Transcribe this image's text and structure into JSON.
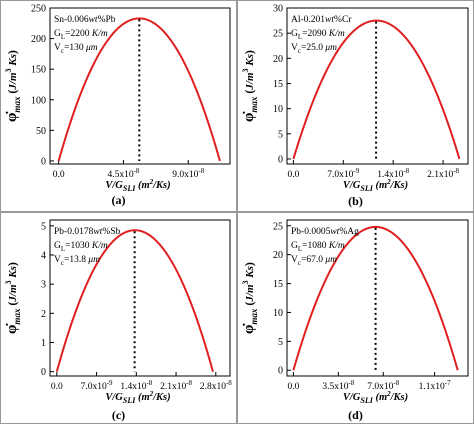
{
  "colors": {
    "curve": "#e02020",
    "axis": "#000000",
    "dotted": "#000000",
    "border": "#999999"
  },
  "chart_data": [
    {
      "type": "line",
      "panel_label": "(a)",
      "annotations": [
        "Sn-0.006wt%Pb",
        "GL=2200 K/m",
        "Vc=130 μm"
      ],
      "annotation_parts": [
        {
          "pre": "Sn-0.006",
          "it": "wt",
          "post": "%Pb"
        },
        {
          "pre": "G",
          "sub": "L",
          "post": "=2200 ",
          "it": "K/m"
        },
        {
          "pre": "V",
          "sub": "c",
          "post": "=130 ",
          "it": "μm"
        }
      ],
      "xlabel": "V/GSLI (m2/Ks)",
      "ylabel": "φmax (J/m3 Ks)",
      "xlim": [
        -6e-09,
        1.19e-07
      ],
      "ylim": [
        -5,
        250
      ],
      "xticks": [
        {
          "v": 0,
          "base": "0.0",
          "exp": ""
        },
        {
          "v": 4.5e-08,
          "base": "4.5x10",
          "exp": "-8"
        },
        {
          "v": 9e-08,
          "base": "9.0x10",
          "exp": "-8"
        }
      ],
      "yticks": [
        0,
        50,
        100,
        150,
        200,
        250
      ],
      "peak": {
        "x": 5.6e-08,
        "y": 233
      },
      "x_end": 1.12e-07
    },
    {
      "type": "line",
      "panel_label": "(b)",
      "annotations": [
        "Al-0.201wt%Cr",
        "GL=2090 K/m",
        "Vc=25.0 μm"
      ],
      "annotation_parts": [
        {
          "pre": "Al-0.201",
          "it": "wt",
          "post": "%Cr"
        },
        {
          "pre": "G",
          "sub": "L",
          "post": "=2090 ",
          "it": "K/m"
        },
        {
          "pre": "V",
          "sub": "c",
          "post": "=25.0 ",
          "it": "μm"
        }
      ],
      "xlabel": "V/GSLI (m2/Ks)",
      "ylabel": "φmax (J/m3 Ks)",
      "xlim": [
        -9e-10,
        2.45e-08
      ],
      "ylim": [
        -1,
        30
      ],
      "xticks": [
        {
          "v": 0,
          "base": "0.0",
          "exp": ""
        },
        {
          "v": 7e-09,
          "base": "7.0x10",
          "exp": "-9"
        },
        {
          "v": 1.4e-08,
          "base": "1.4x10",
          "exp": "-8"
        },
        {
          "v": 2.1e-08,
          "base": "2.1x10",
          "exp": "-8"
        }
      ],
      "yticks": [
        0,
        5,
        10,
        15,
        20,
        25,
        30
      ],
      "peak": {
        "x": 1.16e-08,
        "y": 27.5
      },
      "x_end": 2.33e-08
    },
    {
      "type": "line",
      "panel_label": "(c)",
      "annotations": [
        "Pb-0.0178wt%Sb",
        "GL=1030 K/m",
        "Vc=13.8 μm"
      ],
      "annotation_parts": [
        {
          "pre": "Pb-0.0178",
          "it": "wt",
          "post": "%Sb"
        },
        {
          "pre": "G",
          "sub": "L",
          "post": "=1030 ",
          "it": "K/m"
        },
        {
          "pre": "V",
          "sub": "c",
          "post": "=13.8 ",
          "it": "μm"
        }
      ],
      "xlabel": "V/GSLI (m2/Ks)",
      "ylabel": "φmax (J/m3 Ks)",
      "xlim": [
        -1.2e-09,
        3.05e-08
      ],
      "ylim": [
        -0.15,
        5.2
      ],
      "xticks": [
        {
          "v": 0,
          "base": "0.0",
          "exp": ""
        },
        {
          "v": 7e-09,
          "base": "7.0x10",
          "exp": "-9"
        },
        {
          "v": 1.4e-08,
          "base": "1.4x10",
          "exp": "-8"
        },
        {
          "v": 2.1e-08,
          "base": "2.1x10",
          "exp": "-8"
        },
        {
          "v": 2.8e-08,
          "base": "2.8x10",
          "exp": "-8"
        }
      ],
      "yticks": [
        0,
        1,
        2,
        3,
        4,
        5
      ],
      "peak": {
        "x": 1.37e-08,
        "y": 4.85
      },
      "x_end": 2.75e-08
    },
    {
      "type": "line",
      "panel_label": "(d)",
      "annotations": [
        "Pb-0.0005wt%Ag",
        "GL=1080 K/m",
        "Vc=67.0 μm"
      ],
      "annotation_parts": [
        {
          "pre": "Pb-0.0005",
          "it": "wt",
          "post": "%Ag"
        },
        {
          "pre": "G",
          "sub": "L",
          "post": "=1080 ",
          "it": "K/m"
        },
        {
          "pre": "V",
          "sub": "c",
          "post": "=67.0 ",
          "it": "μm"
        }
      ],
      "xlabel": "V/GSLI (m2/Ks)",
      "ylabel": "φmax (J/m3 Ks)",
      "xlim": [
        -5e-09,
        1.36e-07
      ],
      "ylim": [
        -1,
        26
      ],
      "xticks": [
        {
          "v": 0,
          "base": "0.0",
          "exp": ""
        },
        {
          "v": 3.5e-08,
          "base": "3.5x10",
          "exp": "-8"
        },
        {
          "v": 7e-08,
          "base": "7.0x10",
          "exp": "-8"
        },
        {
          "v": 1.1e-07,
          "base": "1.1x10",
          "exp": "-7"
        }
      ],
      "yticks": [
        0,
        5,
        10,
        15,
        20,
        25
      ],
      "peak": {
        "x": 6.4e-08,
        "y": 24.8
      },
      "x_end": 1.28e-07
    }
  ]
}
